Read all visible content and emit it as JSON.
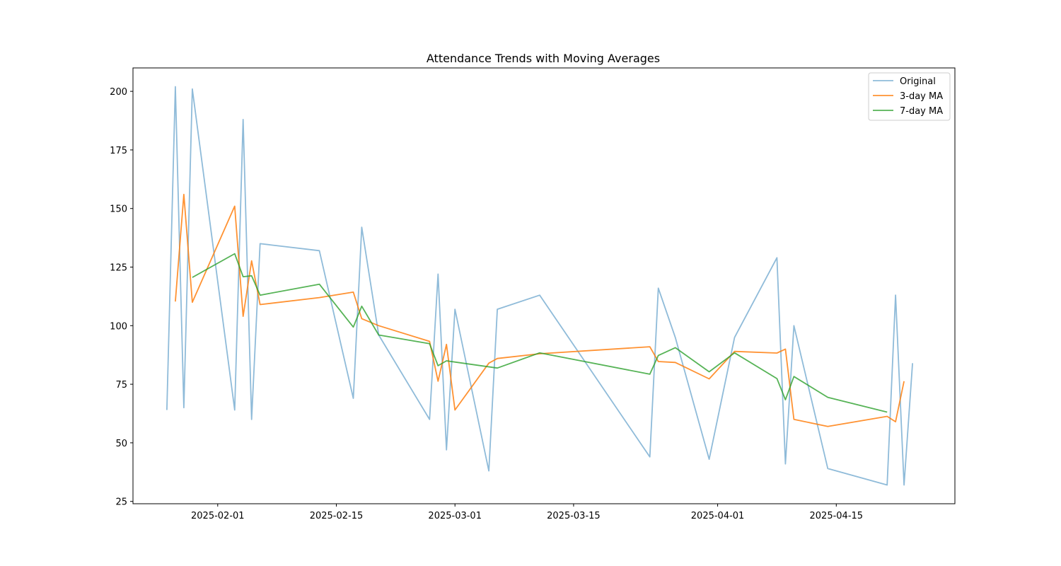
{
  "chart_data": {
    "type": "line",
    "title": "Attendance Trends with Moving Averages",
    "xlabel": "",
    "ylabel": "",
    "x_type": "date",
    "xlim": [
      "2025-01-22",
      "2025-04-29"
    ],
    "ylim": [
      24,
      210
    ],
    "x_ticks": [
      "2025-02-01",
      "2025-02-15",
      "2025-03-01",
      "2025-03-15",
      "2025-04-01",
      "2025-04-15"
    ],
    "x_tick_labels": [
      "2025-02-01",
      "2025-02-15",
      "2025-03-01",
      "2025-03-15",
      "2025-04-01",
      "2025-04-15"
    ],
    "y_ticks": [
      25,
      50,
      75,
      100,
      125,
      150,
      175,
      200
    ],
    "y_tick_labels": [
      "25",
      "50",
      "75",
      "100",
      "125",
      "150",
      "175",
      "200"
    ],
    "grid": false,
    "legend": {
      "position": "top-right"
    },
    "series": [
      {
        "name": "Original",
        "color": "#1f77b4",
        "opacity": 0.5,
        "points": [
          [
            "2025-01-26",
            64
          ],
          [
            "2025-01-27",
            202
          ],
          [
            "2025-01-28",
            65
          ],
          [
            "2025-01-29",
            201
          ],
          [
            "2025-02-03",
            64
          ],
          [
            "2025-02-04",
            188
          ],
          [
            "2025-02-05",
            60
          ],
          [
            "2025-02-06",
            135
          ],
          [
            "2025-02-13",
            132
          ],
          [
            "2025-02-17",
            69
          ],
          [
            "2025-02-18",
            142
          ],
          [
            "2025-02-20",
            96
          ],
          [
            "2025-02-26",
            60
          ],
          [
            "2025-02-27",
            122
          ],
          [
            "2025-02-28",
            47
          ],
          [
            "2025-03-01",
            107
          ],
          [
            "2025-03-05",
            38
          ],
          [
            "2025-03-06",
            107
          ],
          [
            "2025-03-11",
            113
          ],
          [
            "2025-03-24",
            44
          ],
          [
            "2025-03-25",
            116
          ],
          [
            "2025-03-27",
            95
          ],
          [
            "2025-03-31",
            43
          ],
          [
            "2025-04-03",
            95
          ],
          [
            "2025-04-08",
            129
          ],
          [
            "2025-04-09",
            41
          ],
          [
            "2025-04-10",
            100
          ],
          [
            "2025-04-14",
            39
          ],
          [
            "2025-04-21",
            32
          ],
          [
            "2025-04-22",
            113
          ],
          [
            "2025-04-23",
            32
          ],
          [
            "2025-04-24",
            84
          ]
        ]
      },
      {
        "name": "3-day MA",
        "color": "#ff7f0e",
        "opacity": 0.85,
        "points": [
          [
            "2025-01-27",
            110.3
          ],
          [
            "2025-01-28",
            156
          ],
          [
            "2025-01-29",
            110
          ],
          [
            "2025-02-03",
            151
          ],
          [
            "2025-02-04",
            104
          ],
          [
            "2025-02-05",
            127.7
          ],
          [
            "2025-02-06",
            109
          ],
          [
            "2025-02-13",
            112
          ],
          [
            "2025-02-17",
            114.3
          ],
          [
            "2025-02-18",
            103
          ],
          [
            "2025-02-20",
            100
          ],
          [
            "2025-02-26",
            93.3
          ],
          [
            "2025-02-27",
            76.3
          ],
          [
            "2025-02-28",
            92
          ],
          [
            "2025-03-01",
            64
          ],
          [
            "2025-03-05",
            84
          ],
          [
            "2025-03-06",
            86
          ],
          [
            "2025-03-11",
            88
          ],
          [
            "2025-03-24",
            91
          ],
          [
            "2025-03-25",
            84.7
          ],
          [
            "2025-03-27",
            84.3
          ],
          [
            "2025-03-31",
            77.3
          ],
          [
            "2025-04-03",
            89
          ],
          [
            "2025-04-08",
            88.3
          ],
          [
            "2025-04-09",
            90
          ],
          [
            "2025-04-10",
            60
          ],
          [
            "2025-04-14",
            57
          ],
          [
            "2025-04-21",
            61.3
          ],
          [
            "2025-04-22",
            59
          ],
          [
            "2025-04-23",
            76.3
          ]
        ]
      },
      {
        "name": "7-day MA",
        "color": "#2ca02c",
        "opacity": 0.8,
        "points": [
          [
            "2025-01-29",
            120.6
          ],
          [
            "2025-02-03",
            130.7
          ],
          [
            "2025-02-04",
            120.9
          ],
          [
            "2025-02-05",
            121.3
          ],
          [
            "2025-02-06",
            113
          ],
          [
            "2025-02-13",
            117.7
          ],
          [
            "2025-02-17",
            99.4
          ],
          [
            "2025-02-18",
            108.3
          ],
          [
            "2025-02-20",
            96
          ],
          [
            "2025-02-26",
            92.3
          ],
          [
            "2025-02-27",
            82.9
          ],
          [
            "2025-02-28",
            85
          ],
          [
            "2025-03-06",
            81.9
          ],
          [
            "2025-03-11",
            88.4
          ],
          [
            "2025-03-24",
            79.3
          ],
          [
            "2025-03-25",
            87.3
          ],
          [
            "2025-03-27",
            90.6
          ],
          [
            "2025-03-31",
            80.3
          ],
          [
            "2025-04-03",
            88.4
          ],
          [
            "2025-04-08",
            77.4
          ],
          [
            "2025-04-09",
            68.4
          ],
          [
            "2025-04-10",
            78.3
          ],
          [
            "2025-04-14",
            69.4
          ],
          [
            "2025-04-21",
            63.1
          ]
        ]
      }
    ]
  }
}
